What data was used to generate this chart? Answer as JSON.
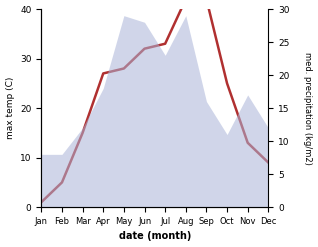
{
  "months": [
    "Jan",
    "Feb",
    "Mar",
    "Apr",
    "May",
    "Jun",
    "Jul",
    "Aug",
    "Sep",
    "Oct",
    "Nov",
    "Dec"
  ],
  "temp_line": [
    1,
    5,
    15,
    27,
    28,
    32,
    33,
    42,
    42,
    25,
    13,
    9
  ],
  "precip": [
    8,
    8,
    12,
    18,
    29,
    28,
    23,
    29,
    16,
    11,
    17,
    12
  ],
  "temp_color": "#b03030",
  "precip_fill_color": "#aab4d8",
  "ylabel_left": "max temp (C)",
  "ylabel_right": "med. precipitation (kg/m2)",
  "xlabel": "date (month)",
  "ylim_left": [
    0,
    40
  ],
  "ylim_right": [
    0,
    30
  ],
  "yticks_left": [
    0,
    10,
    20,
    30,
    40
  ],
  "yticks_right": [
    0,
    5,
    10,
    15,
    20,
    25,
    30
  ]
}
